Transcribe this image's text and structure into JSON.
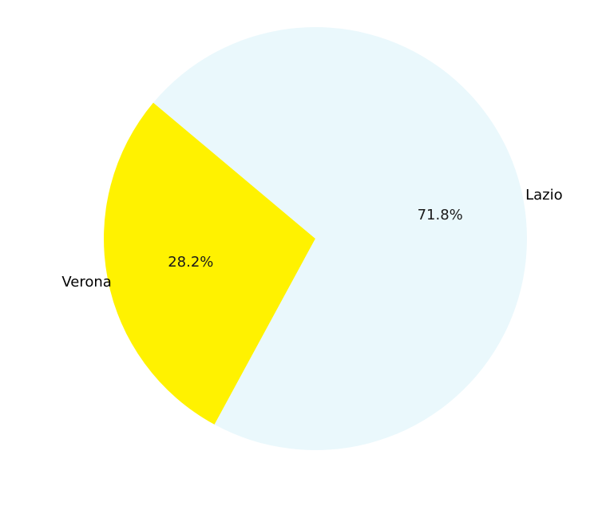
{
  "chart_data": {
    "type": "pie",
    "categories": [
      "Verona",
      "Lazio"
    ],
    "values": [
      28.2,
      71.8
    ],
    "percent_labels": [
      "28.2%",
      "71.8%"
    ],
    "colors": [
      "#fff200",
      "#eaf8fc"
    ],
    "start_angle_deg": 140,
    "direction": "counterclockwise"
  }
}
